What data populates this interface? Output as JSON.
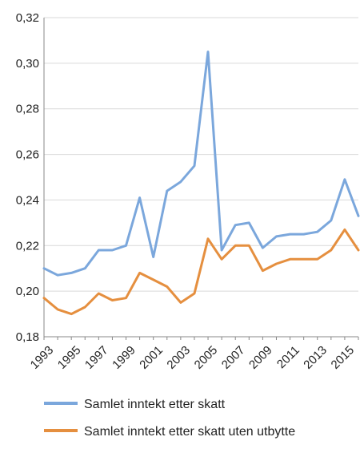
{
  "chart_data": {
    "type": "line",
    "title": "",
    "xlabel": "",
    "ylabel": "",
    "x": [
      1993,
      1994,
      1995,
      1996,
      1997,
      1998,
      1999,
      2000,
      2001,
      2002,
      2003,
      2004,
      2005,
      2006,
      2007,
      2008,
      2009,
      2010,
      2011,
      2012,
      2013,
      2014,
      2015,
      2016
    ],
    "xticks": [
      "1993",
      "1995",
      "1997",
      "1999",
      "2001",
      "2003",
      "2005",
      "2007",
      "2009",
      "2011",
      "2013",
      "2015"
    ],
    "yticks": [
      "0,18",
      "0,20",
      "0,22",
      "0,24",
      "0,26",
      "0,28",
      "0,30",
      "0,32"
    ],
    "ylim": [
      0.18,
      0.32
    ],
    "grid": "horizontal",
    "legend_position": "bottom",
    "series": [
      {
        "name": "Samlet inntekt etter skatt",
        "color": "#7ba7dc",
        "values": [
          0.21,
          0.207,
          0.208,
          0.21,
          0.218,
          0.218,
          0.22,
          0.241,
          0.215,
          0.244,
          0.248,
          0.255,
          0.305,
          0.218,
          0.229,
          0.23,
          0.219,
          0.224,
          0.225,
          0.225,
          0.226,
          0.231,
          0.249,
          0.233
        ]
      },
      {
        "name": "Samlet inntekt etter skatt uten utbytte",
        "color": "#e58f3f",
        "values": [
          0.197,
          0.192,
          0.19,
          0.193,
          0.199,
          0.196,
          0.197,
          0.208,
          0.205,
          0.202,
          0.195,
          0.199,
          0.223,
          0.214,
          0.22,
          0.22,
          0.209,
          0.212,
          0.214,
          0.214,
          0.214,
          0.218,
          0.227,
          0.218
        ]
      }
    ]
  }
}
